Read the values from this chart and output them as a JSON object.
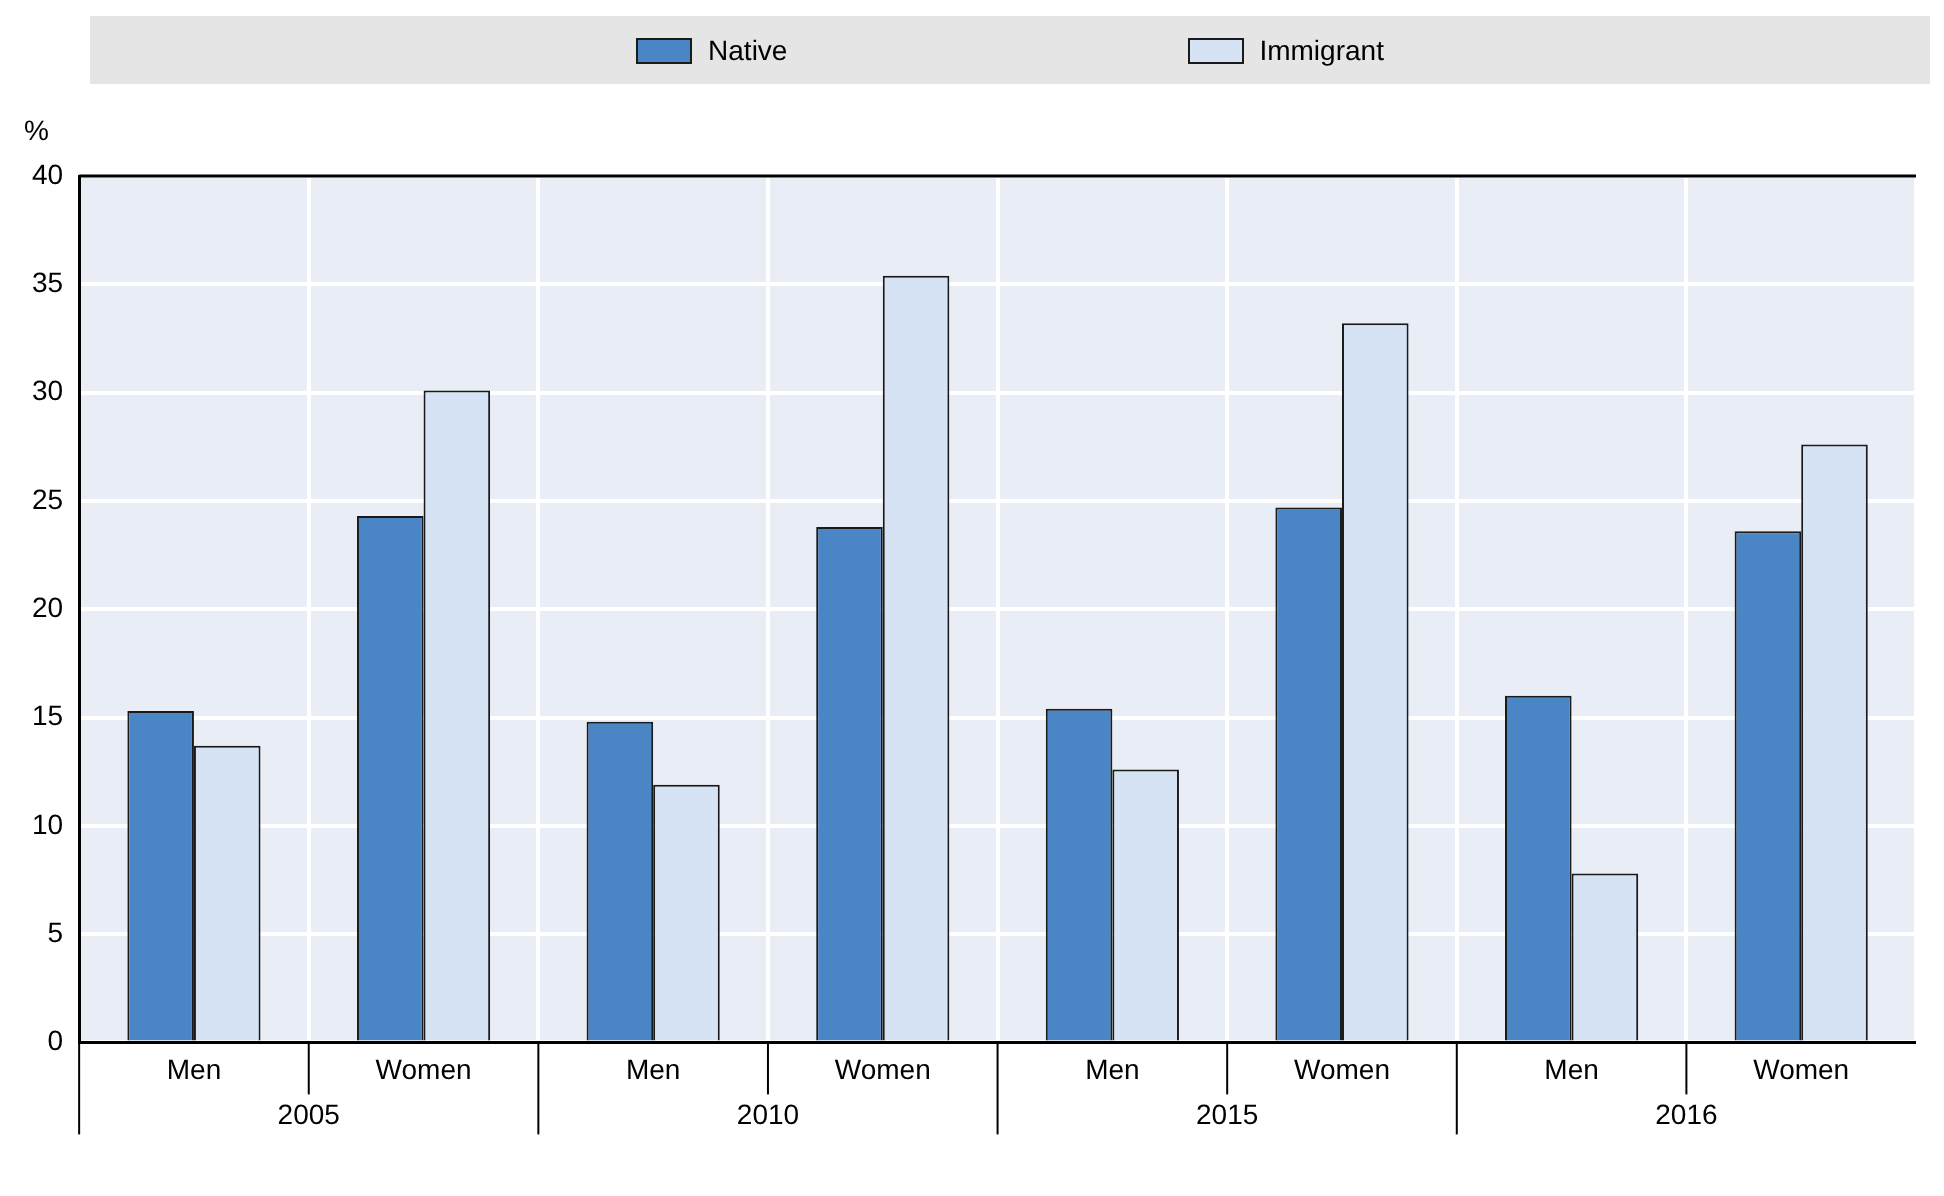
{
  "chart_data": {
    "type": "bar",
    "ylabel": "%",
    "categories": [
      "Men",
      "Women",
      "Men",
      "Women",
      "Men",
      "Women",
      "Men",
      "Women"
    ],
    "series": [
      {
        "name": "Native",
        "color": "#4a86c6",
        "values": [
          15.3,
          24.3,
          14.8,
          23.8,
          15.4,
          24.7,
          16.0,
          23.6
        ]
      },
      {
        "name": "Immigrant",
        "color": "#d5e3f4",
        "values": [
          13.7,
          30.1,
          11.9,
          35.4,
          12.6,
          33.2,
          7.8,
          27.6
        ]
      }
    ],
    "annotations": [
      "2005",
      "2010",
      "2015",
      "2016"
    ],
    "ylim": [
      0,
      40
    ],
    "yticks": [
      0,
      5,
      10,
      15,
      20,
      25,
      30,
      35,
      40
    ],
    "grid": true,
    "legend": "top"
  }
}
